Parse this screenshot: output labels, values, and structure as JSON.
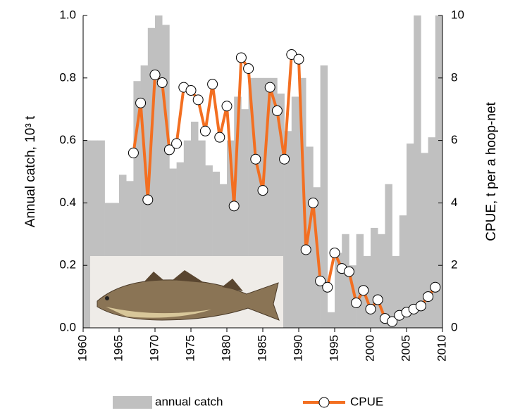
{
  "chart_data": {
    "type": "bar_line",
    "y_label": "Annual catch, 10³ t",
    "y2_label": "CPUE,  t per a hoop-net",
    "xlim": [
      1960,
      2010
    ],
    "xticks": [
      1960,
      1965,
      1970,
      1975,
      1980,
      1985,
      1990,
      1995,
      2000,
      2005,
      2010
    ],
    "ylim": [
      0,
      1
    ],
    "yticks": [
      {
        "value": 0,
        "label": "0.0"
      },
      {
        "value": 0.2,
        "label": "0.2"
      },
      {
        "value": 0.4,
        "label": "0.4"
      },
      {
        "value": 0.6,
        "label": "0.6"
      },
      {
        "value": 0.8,
        "label": "0.8"
      },
      {
        "value": 1,
        "label": "1.0"
      }
    ],
    "y2lim": [
      0,
      10
    ],
    "y2ticks": [
      0,
      2,
      4,
      6,
      8,
      10
    ],
    "series": [
      {
        "name": "annual catch",
        "type": "bar",
        "color": "#c0c0c0",
        "x": [
          1960,
          1961,
          1962,
          1963,
          1964,
          1965,
          1966,
          1967,
          1968,
          1969,
          1970,
          1971,
          1972,
          1973,
          1974,
          1975,
          1976,
          1977,
          1978,
          1979,
          1980,
          1981,
          1982,
          1983,
          1984,
          1985,
          1986,
          1987,
          1988,
          1989,
          1990,
          1991,
          1992,
          1993,
          1994,
          1995,
          1996,
          1997,
          1998,
          1999,
          2000,
          2001,
          2002,
          2003,
          2004,
          2005,
          2006,
          2007,
          2008,
          2009
        ],
        "values": [
          0.6,
          0.6,
          0.6,
          0.4,
          0.4,
          0.49,
          0.47,
          0.79,
          0.84,
          0.96,
          1.0,
          0.97,
          0.51,
          0.53,
          0.6,
          0.66,
          0.6,
          0.52,
          0.5,
          0.46,
          0.6,
          0.74,
          0.7,
          0.8,
          0.8,
          0.8,
          0.8,
          0.75,
          0.63,
          0.74,
          0.8,
          0.58,
          0.45,
          0.84,
          0.05,
          0.24,
          0.3,
          0.2,
          0.3,
          0.23,
          0.32,
          0.3,
          0.46,
          0.23,
          0.36,
          0.59,
          1.0,
          0.56,
          0.61,
          1.0
        ]
      },
      {
        "name": "CPUE",
        "type": "line",
        "axis": "y2",
        "color": "#f36f21",
        "x": [
          1967,
          1968,
          1969,
          1970,
          1971,
          1972,
          1973,
          1974,
          1975,
          1976,
          1977,
          1978,
          1979,
          1980,
          1981,
          1982,
          1983,
          1984,
          1985,
          1986,
          1987,
          1988,
          1989,
          1990,
          1991,
          1992,
          1993,
          1994,
          1995,
          1996,
          1997,
          1998,
          1999,
          2000,
          2001,
          2002,
          2003,
          2004,
          2005,
          2006,
          2007,
          2008,
          2009
        ],
        "values": [
          5.6,
          7.2,
          4.1,
          8.1,
          7.85,
          5.7,
          5.9,
          7.7,
          7.6,
          7.3,
          6.3,
          7.8,
          6.1,
          7.1,
          3.9,
          8.65,
          8.3,
          5.4,
          4.4,
          7.7,
          6.95,
          5.4,
          8.75,
          8.6,
          2.5,
          4.0,
          1.5,
          1.3,
          2.4,
          1.9,
          1.8,
          0.8,
          1.2,
          0.6,
          0.9,
          0.3,
          0.2,
          0.4,
          0.5,
          0.6,
          0.7,
          1.0,
          1.3
        ]
      }
    ]
  }
}
